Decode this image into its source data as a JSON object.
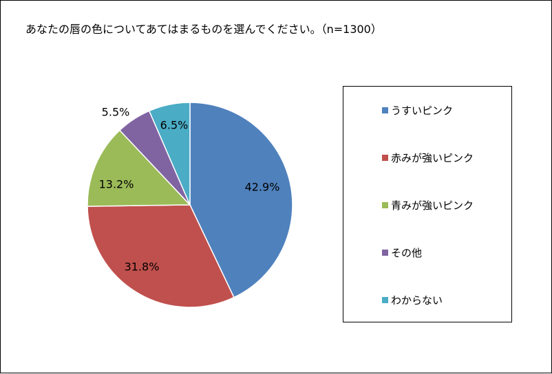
{
  "title": "あなたの唇の色についてあてはまるものを選んでください。（n=1300）",
  "chart_data": {
    "type": "pie",
    "title": "あなたの唇の色についてあてはまるものを選んでください。（n=1300）",
    "start_angle_deg": 0,
    "direction": "clockwise",
    "legend_position": "right",
    "slices": [
      {
        "label": "うすいピンク",
        "value": 42.9,
        "value_label": "42.9%",
        "color": "#4F81BD"
      },
      {
        "label": "赤みが強いピンク",
        "value": 31.8,
        "value_label": "31.8%",
        "color": "#C0504D"
      },
      {
        "label": "青みが強いピンク",
        "value": 13.2,
        "value_label": "13.2%",
        "color": "#9BBB59"
      },
      {
        "label": "その他",
        "value": 5.5,
        "value_label": "5.5%",
        "color": "#8064A2"
      },
      {
        "label": "わからない",
        "value": 6.5,
        "value_label": "6.5%",
        "color": "#4BACC6"
      }
    ]
  }
}
